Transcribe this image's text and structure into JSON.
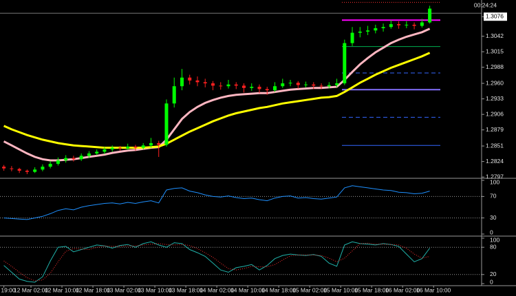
{
  "chart_data": {
    "type": "candlestick",
    "timer": "00:24:24",
    "xlim": [
      -0.5,
      61.7
    ],
    "ylim": [
      1.2796,
      1.3105
    ],
    "yticks": [
      1.3076,
      1.3042,
      1.3015,
      1.2988,
      {
        "value": 1.296,
        "label": "1.2960"
      },
      1.2933,
      1.2906,
      1.2879,
      1.2851,
      1.2824,
      1.2797
    ],
    "highlight_tick": 0,
    "bid": 1.3082,
    "xticks": [
      {
        "value": 0,
        "label": "19:00"
      },
      {
        "value": 3.5,
        "label": "12 Mar 02:00"
      },
      {
        "value": 7.5,
        "label": "12 Mar 10:00"
      },
      {
        "value": 11.5,
        "label": "12 Mar 18:00"
      },
      {
        "value": 15.5,
        "label": "13 Mar 02:00"
      },
      {
        "value": 19.5,
        "label": "13 Mar 10:00"
      },
      {
        "value": 23.5,
        "label": "13 Mar 18:00"
      },
      {
        "value": 27.5,
        "label": "14 Mar 02:00"
      },
      {
        "value": 31.5,
        "label": "14 Mar 10:00"
      },
      {
        "value": 35.5,
        "label": "14 Mar 18:00"
      },
      {
        "value": 39.5,
        "label": "15 Mar 02:00"
      },
      {
        "value": 43.5,
        "label": "15 Mar 10:00"
      },
      {
        "value": 47.5,
        "label": "15 Mar 18:00"
      },
      {
        "value": 51.5,
        "label": "16 Mar 02:00"
      },
      {
        "value": 55.5,
        "label": "16 Mar 10:00"
      }
    ],
    "up_color": "#00ff00",
    "down_color": "#ff2020",
    "ohlc": [
      [
        1.2815,
        1.2818,
        1.2808,
        1.2812
      ],
      [
        1.2812,
        1.2816,
        1.2807,
        1.2811
      ],
      [
        1.2811,
        1.2813,
        1.2804,
        1.2808
      ],
      [
        1.2808,
        1.281,
        1.2802,
        1.2806
      ],
      [
        1.2806,
        1.2814,
        1.2804,
        1.281
      ],
      [
        1.281,
        1.2819,
        1.2807,
        1.2815
      ],
      [
        1.2815,
        1.2825,
        1.2812,
        1.282
      ],
      [
        1.282,
        1.2831,
        1.2817,
        1.2826
      ],
      [
        1.2826,
        1.2835,
        1.2822,
        1.283
      ],
      [
        1.283,
        1.2834,
        1.2824,
        1.2828
      ],
      [
        1.2828,
        1.2838,
        1.2825,
        1.2834
      ],
      [
        1.2834,
        1.2842,
        1.283,
        1.2838
      ],
      [
        1.2838,
        1.2845,
        1.2835,
        1.2841
      ],
      [
        1.2841,
        1.2849,
        1.2837,
        1.2845
      ],
      [
        1.2845,
        1.2852,
        1.2841,
        1.2848
      ],
      [
        1.2848,
        1.2851,
        1.2843,
        1.2847
      ],
      [
        1.2847,
        1.2855,
        1.2844,
        1.285
      ],
      [
        1.285,
        1.2853,
        1.2843,
        1.2848
      ],
      [
        1.2848,
        1.2856,
        1.2845,
        1.2852
      ],
      [
        1.2852,
        1.2865,
        1.2848,
        1.2856
      ],
      [
        1.2856,
        1.286,
        1.2832,
        1.2853
      ],
      [
        1.2853,
        1.2932,
        1.285,
        1.2925
      ],
      [
        1.2925,
        1.297,
        1.2918,
        1.2955
      ],
      [
        1.2955,
        1.2985,
        1.2948,
        1.297
      ],
      [
        1.297,
        1.2975,
        1.2958,
        1.2965
      ],
      [
        1.2965,
        1.2972,
        1.2955,
        1.2962
      ],
      [
        1.2962,
        1.2968,
        1.2953,
        1.296
      ],
      [
        1.296,
        1.2964,
        1.2948,
        1.2956
      ],
      [
        1.2956,
        1.2962,
        1.2949,
        1.2955
      ],
      [
        1.2955,
        1.2966,
        1.2951,
        1.2958
      ],
      [
        1.2958,
        1.2962,
        1.295,
        1.2956
      ],
      [
        1.2956,
        1.296,
        1.2944,
        1.2952
      ],
      [
        1.2952,
        1.296,
        1.2947,
        1.2954
      ],
      [
        1.2954,
        1.2958,
        1.2943,
        1.295
      ],
      [
        1.295,
        1.2954,
        1.294,
        1.2948
      ],
      [
        1.2948,
        1.2962,
        1.2945,
        1.2955
      ],
      [
        1.2955,
        1.2968,
        1.2952,
        1.296
      ],
      [
        1.296,
        1.2966,
        1.2955,
        1.2961
      ],
      [
        1.2961,
        1.2964,
        1.2951,
        1.2957
      ],
      [
        1.2957,
        1.2963,
        1.2953,
        1.2958
      ],
      [
        1.2958,
        1.2962,
        1.295,
        1.2956
      ],
      [
        1.2956,
        1.296,
        1.295,
        1.2955
      ],
      [
        1.2955,
        1.2962,
        1.2951,
        1.2957
      ],
      [
        1.2957,
        1.2968,
        1.2953,
        1.296
      ],
      [
        1.296,
        1.3036,
        1.2957,
        1.303
      ],
      [
        1.303,
        1.3058,
        1.3025,
        1.3048
      ],
      [
        1.3048,
        1.3058,
        1.304,
        1.305
      ],
      [
        1.305,
        1.306,
        1.3044,
        1.3052
      ],
      [
        1.3052,
        1.3062,
        1.3047,
        1.3056
      ],
      [
        1.3056,
        1.3064,
        1.305,
        1.3058
      ],
      [
        1.3058,
        1.307,
        1.3055,
        1.3063
      ],
      [
        1.3063,
        1.3068,
        1.3055,
        1.3061
      ],
      [
        1.3061,
        1.3068,
        1.3056,
        1.3062
      ],
      [
        1.3062,
        1.3066,
        1.3054,
        1.306
      ],
      [
        1.306,
        1.3072,
        1.3057,
        1.3066
      ],
      [
        1.3066,
        1.3095,
        1.3064,
        1.309
      ]
    ],
    "series": [
      {
        "color": "#ffb6c1",
        "values": [
          1.2859,
          1.2852,
          1.2845,
          1.2838,
          1.2832,
          1.2828,
          1.2826,
          1.2826,
          1.2827,
          1.2828,
          1.283,
          1.2832,
          1.2834,
          1.2836,
          1.2839,
          1.2841,
          1.2843,
          1.2844,
          1.2846,
          1.2848,
          1.2849,
          1.2862,
          1.288,
          1.2898,
          1.291,
          1.2919,
          1.2926,
          1.2931,
          1.2935,
          1.2938,
          1.294,
          1.2941,
          1.2942,
          1.2943,
          1.2943,
          1.2945,
          1.2947,
          1.2949,
          1.295,
          1.2951,
          1.2952,
          1.2952,
          1.2953,
          1.2954,
          1.2966,
          1.298,
          1.2993,
          1.3004,
          1.3014,
          1.3022,
          1.303,
          1.3036,
          1.3041,
          1.3045,
          1.3049,
          1.3055
        ]
      },
      {
        "color": "#ffff00",
        "values": [
          1.2886,
          1.288,
          1.2875,
          1.287,
          1.2866,
          1.2862,
          1.2859,
          1.2856,
          1.2854,
          1.2852,
          1.2851,
          1.285,
          1.2849,
          1.2848,
          1.2848,
          1.2848,
          1.2848,
          1.2848,
          1.2848,
          1.2849,
          1.285,
          1.2855,
          1.2862,
          1.2869,
          1.2876,
          1.2882,
          1.2888,
          1.2894,
          1.2899,
          1.2904,
          1.2908,
          1.2911,
          1.2914,
          1.2917,
          1.2919,
          1.2922,
          1.2925,
          1.2927,
          1.2929,
          1.2931,
          1.2933,
          1.2935,
          1.2936,
          1.2938,
          1.2945,
          1.2953,
          1.2961,
          1.2968,
          1.2975,
          1.2981,
          1.2987,
          1.2992,
          1.2997,
          1.3002,
          1.3007,
          1.3013
        ]
      }
    ],
    "levels": [
      {
        "value": 1.3101,
        "color": "#ff3333",
        "style": "dotted",
        "width": 1
      },
      {
        "value": 1.307,
        "color": "#ff00ff",
        "style": "solid",
        "width": 2
      },
      {
        "value": 1.3024,
        "color": "#00b050",
        "style": "solid",
        "width": 1
      },
      {
        "value": 1.2978,
        "color": "#3366ff",
        "style": "dashed",
        "width": 1
      },
      {
        "value": 1.2949,
        "color": "#8470ff",
        "style": "solid",
        "width": 2
      },
      {
        "value": 1.2901,
        "color": "#3366ff",
        "style": "dashed",
        "width": 1
      },
      {
        "value": 1.2852,
        "color": "#3366ff",
        "style": "solid",
        "width": 1
      }
    ],
    "indicators": [
      {
        "ylim": [
          0,
          100
        ],
        "yticks": [
          100,
          70,
          30,
          0
        ],
        "levels": [
          70,
          30
        ],
        "series": [
          {
            "color": "#1e90ff",
            "style": "solid",
            "values": [
              30,
              29,
              28,
              27,
              30,
              33,
              38,
              44,
              47,
              45,
              50,
              53,
              55,
              57,
              58,
              56,
              59,
              57,
              60,
              62,
              58,
              82,
              85,
              86,
              80,
              77,
              73,
              70,
              69,
              71,
              68,
              66,
              67,
              64,
              62,
              67,
              70,
              71,
              67,
              68,
              66,
              65,
              67,
              69,
              86,
              90,
              88,
              86,
              84,
              82,
              81,
              78,
              77,
              75,
              76,
              80
            ]
          }
        ]
      },
      {
        "ylim": [
          0,
          100
        ],
        "yticks": [
          100,
          80,
          20,
          0
        ],
        "levels": [
          80,
          20
        ],
        "series": [
          {
            "color": "#20b2aa",
            "style": "solid",
            "values": [
              40,
              25,
              10,
              5,
              3,
              15,
              50,
              80,
              82,
              70,
              75,
              80,
              85,
              83,
              78,
              84,
              86,
              80,
              88,
              92,
              85,
              80,
              90,
              88,
              75,
              68,
              60,
              45,
              30,
              25,
              35,
              38,
              42,
              30,
              40,
              55,
              62,
              65,
              63,
              62,
              64,
              60,
              45,
              38,
              85,
              92,
              88,
              87,
              85,
              88,
              86,
              82,
              65,
              48,
              55,
              78
            ]
          },
          {
            "color": "#ff3030",
            "style": "dotted",
            "values": [
              50,
              38,
              25,
              13,
              6,
              8,
              23,
              48,
              71,
              77,
              76,
              75,
              80,
              83,
              82,
              82,
              83,
              83,
              85,
              87,
              88,
              86,
              85,
              86,
              84,
              77,
              68,
              58,
              45,
              33,
              30,
              33,
              38,
              37,
              37,
              42,
              52,
              61,
              63,
              63,
              63,
              62,
              56,
              48,
              56,
              72,
              88,
              89,
              87,
              87,
              86,
              85,
              78,
              65,
              56,
              60
            ]
          }
        ]
      }
    ]
  }
}
